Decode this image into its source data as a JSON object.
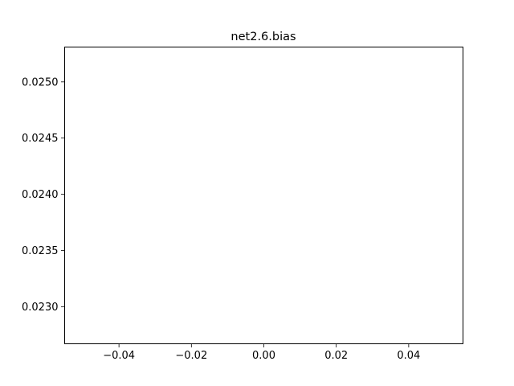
{
  "chart_data": {
    "type": "line",
    "title": "net2.6.bias",
    "xlabel": "",
    "ylabel": "",
    "xlim": [
      -0.055,
      0.055
    ],
    "ylim": [
      0.02267,
      0.02531
    ],
    "x_ticks": [
      -0.04,
      -0.02,
      0.0,
      0.02,
      0.04
    ],
    "x_tick_labels": [
      "−0.04",
      "−0.02",
      "0.00",
      "0.02",
      "0.04"
    ],
    "y_ticks": [
      0.023,
      0.0235,
      0.024,
      0.0245,
      0.025
    ],
    "y_tick_labels": [
      "0.0230",
      "0.0235",
      "0.0240",
      "0.0245",
      "0.0250"
    ],
    "series": [],
    "grid": false,
    "legend": "none"
  }
}
